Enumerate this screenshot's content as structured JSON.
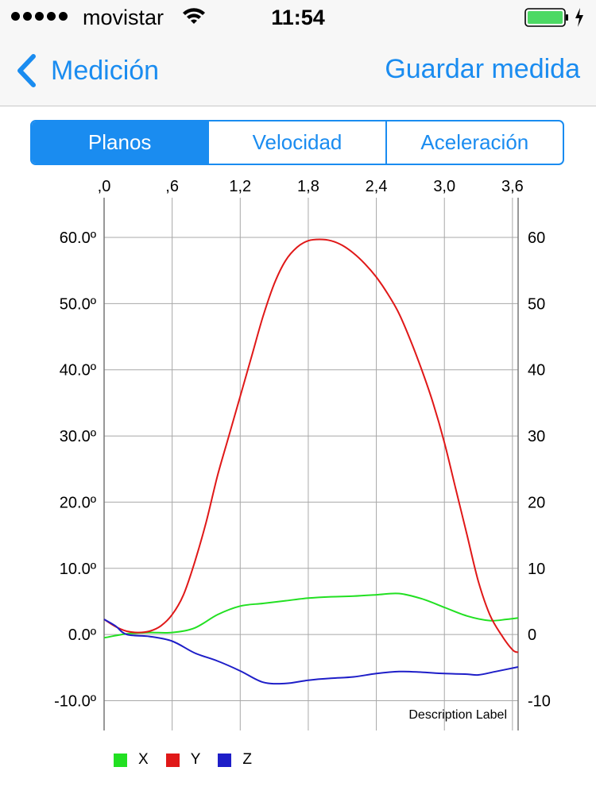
{
  "status_bar": {
    "carrier": "movistar",
    "time": "11:54",
    "signal_bars": 5,
    "battery_level": 1.0,
    "charging": true
  },
  "nav": {
    "back_label": "Medición",
    "save_label": "Guardar medida"
  },
  "segments": [
    {
      "label": "Planos",
      "active": true
    },
    {
      "label": "Velocidad",
      "active": false
    },
    {
      "label": "Aceleración",
      "active": false
    }
  ],
  "colors": {
    "accent": "#1a8cf0",
    "x_series": "#22e022",
    "y_series": "#e01818",
    "z_series": "#1e1ec8"
  },
  "chart_data": {
    "type": "line",
    "description_label": "Description Label",
    "x_tick_labels": [
      ",0",
      ",6",
      "1,2",
      "1,8",
      "2,4",
      "3,0",
      "3,6"
    ],
    "xlim": [
      0,
      3.65
    ],
    "x_gridlines": [
      0,
      0.6,
      1.2,
      1.8,
      2.4,
      3.0,
      3.6
    ],
    "ylim": [
      -14.5,
      66
    ],
    "y_ticks": [
      -10,
      0,
      10,
      20,
      30,
      40,
      50,
      60
    ],
    "y_left_labels": [
      "-10.0º",
      "0.0º",
      "10.0º",
      "20.0º",
      "30.0º",
      "40.0º",
      "50.0º",
      "60.0º"
    ],
    "y_right_labels": [
      "-10",
      "0",
      "10",
      "20",
      "30",
      "40",
      "50",
      "60"
    ],
    "grid": true,
    "legend": "bottom-left",
    "series": [
      {
        "name": "X",
        "color": "#22e022",
        "points": [
          [
            0,
            -0.5
          ],
          [
            0.2,
            0.1
          ],
          [
            0.4,
            0.3
          ],
          [
            0.6,
            0.3
          ],
          [
            0.8,
            1.0
          ],
          [
            1.0,
            3.0
          ],
          [
            1.2,
            4.3
          ],
          [
            1.4,
            4.7
          ],
          [
            1.6,
            5.1
          ],
          [
            1.8,
            5.5
          ],
          [
            2.0,
            5.7
          ],
          [
            2.2,
            5.8
          ],
          [
            2.4,
            6.0
          ],
          [
            2.6,
            6.2
          ],
          [
            2.8,
            5.4
          ],
          [
            3.0,
            4.1
          ],
          [
            3.2,
            2.8
          ],
          [
            3.4,
            2.1
          ],
          [
            3.55,
            2.3
          ],
          [
            3.65,
            2.5
          ]
        ]
      },
      {
        "name": "Y",
        "color": "#e01818",
        "points": [
          [
            0,
            2.3
          ],
          [
            0.1,
            1.2
          ],
          [
            0.2,
            0.5
          ],
          [
            0.3,
            0.3
          ],
          [
            0.4,
            0.5
          ],
          [
            0.5,
            1.3
          ],
          [
            0.6,
            3
          ],
          [
            0.7,
            6
          ],
          [
            0.8,
            11
          ],
          [
            0.9,
            17
          ],
          [
            1.0,
            24
          ],
          [
            1.1,
            30
          ],
          [
            1.2,
            36
          ],
          [
            1.3,
            42
          ],
          [
            1.4,
            48
          ],
          [
            1.5,
            53
          ],
          [
            1.6,
            56.5
          ],
          [
            1.7,
            58.5
          ],
          [
            1.8,
            59.5
          ],
          [
            1.9,
            59.7
          ],
          [
            2.0,
            59.5
          ],
          [
            2.1,
            58.8
          ],
          [
            2.2,
            57.6
          ],
          [
            2.3,
            56
          ],
          [
            2.4,
            54
          ],
          [
            2.5,
            51.5
          ],
          [
            2.6,
            48.5
          ],
          [
            2.7,
            44.5
          ],
          [
            2.8,
            40
          ],
          [
            2.9,
            35
          ],
          [
            3.0,
            29
          ],
          [
            3.1,
            22
          ],
          [
            3.2,
            15
          ],
          [
            3.3,
            8
          ],
          [
            3.4,
            3
          ],
          [
            3.5,
            0
          ],
          [
            3.6,
            -2.3
          ],
          [
            3.65,
            -2.7
          ]
        ]
      },
      {
        "name": "Z",
        "color": "#1e1ec8",
        "points": [
          [
            0,
            2.3
          ],
          [
            0.1,
            1.3
          ],
          [
            0.2,
            0
          ],
          [
            0.4,
            -0.3
          ],
          [
            0.6,
            -1.0
          ],
          [
            0.8,
            -2.8
          ],
          [
            1.0,
            -4.0
          ],
          [
            1.2,
            -5.5
          ],
          [
            1.4,
            -7.2
          ],
          [
            1.6,
            -7.4
          ],
          [
            1.8,
            -6.9
          ],
          [
            2.0,
            -6.6
          ],
          [
            2.2,
            -6.4
          ],
          [
            2.4,
            -5.9
          ],
          [
            2.6,
            -5.6
          ],
          [
            2.8,
            -5.7
          ],
          [
            3.0,
            -5.9
          ],
          [
            3.2,
            -6.0
          ],
          [
            3.3,
            -6.1
          ],
          [
            3.45,
            -5.6
          ],
          [
            3.65,
            -4.9
          ]
        ]
      }
    ]
  }
}
